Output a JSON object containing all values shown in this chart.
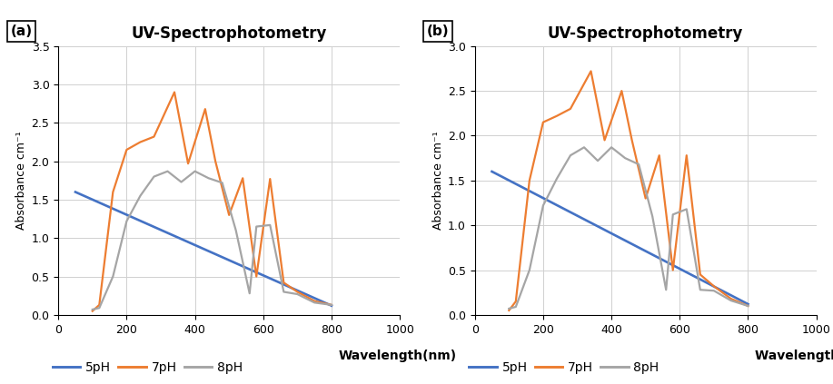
{
  "panel_a": {
    "title": "UV-Spectrophotometry",
    "label": "(a)",
    "ylabel": "Absorbance cm⁻¹",
    "xlabel": "Wavelength(nm)",
    "ylim": [
      0,
      3.5
    ],
    "xlim": [
      0,
      1000
    ],
    "yticks": [
      0,
      0.5,
      1.0,
      1.5,
      2.0,
      2.5,
      3.0,
      3.5
    ],
    "xticks": [
      0,
      200,
      400,
      600,
      800,
      1000
    ],
    "pH5": {
      "x": [
        50,
        800
      ],
      "y": [
        1.6,
        0.12
      ]
    },
    "pH7": {
      "x": [
        100,
        120,
        160,
        200,
        240,
        280,
        340,
        380,
        430,
        460,
        500,
        540,
        580,
        620,
        660,
        700,
        750,
        800
      ],
      "y": [
        0.05,
        0.13,
        1.6,
        2.15,
        2.25,
        2.32,
        2.9,
        1.97,
        2.68,
        2.0,
        1.3,
        1.78,
        0.5,
        1.77,
        0.42,
        0.3,
        0.18,
        0.13
      ]
    },
    "pH8": {
      "x": [
        100,
        120,
        160,
        200,
        240,
        280,
        320,
        360,
        400,
        440,
        480,
        520,
        560,
        580,
        620,
        660,
        700,
        750,
        800
      ],
      "y": [
        0.07,
        0.09,
        0.5,
        1.22,
        1.55,
        1.8,
        1.87,
        1.73,
        1.87,
        1.78,
        1.72,
        1.1,
        0.28,
        1.15,
        1.17,
        0.3,
        0.27,
        0.16,
        0.13
      ]
    }
  },
  "panel_b": {
    "title": "UV-Spectrophotometry",
    "label": "(b)",
    "ylabel": "Absorbance cm⁻¹",
    "xlabel": "Wavelength (nm)",
    "ylim": [
      0,
      3.0
    ],
    "xlim": [
      0,
      1000
    ],
    "yticks": [
      0,
      0.5,
      1.0,
      1.5,
      2.0,
      2.5,
      3.0
    ],
    "xticks": [
      0,
      200,
      400,
      600,
      800,
      1000
    ],
    "pH5": {
      "x": [
        50,
        800
      ],
      "y": [
        1.6,
        0.12
      ]
    },
    "pH7": {
      "x": [
        100,
        120,
        160,
        200,
        240,
        280,
        340,
        380,
        430,
        460,
        500,
        540,
        580,
        620,
        660,
        700,
        750,
        800
      ],
      "y": [
        0.05,
        0.15,
        1.5,
        2.15,
        2.22,
        2.3,
        2.72,
        1.95,
        2.5,
        1.95,
        1.3,
        1.78,
        0.5,
        1.78,
        0.45,
        0.32,
        0.18,
        0.1
      ]
    },
    "pH8": {
      "x": [
        100,
        120,
        160,
        200,
        240,
        280,
        320,
        360,
        400,
        440,
        480,
        520,
        560,
        580,
        620,
        660,
        700,
        750,
        800
      ],
      "y": [
        0.07,
        0.09,
        0.5,
        1.22,
        1.52,
        1.78,
        1.87,
        1.72,
        1.87,
        1.75,
        1.68,
        1.1,
        0.28,
        1.12,
        1.18,
        0.28,
        0.27,
        0.16,
        0.1
      ]
    }
  },
  "color_pH5": "#4472C4",
  "color_pH7": "#ED7D31",
  "color_pH8": "#A5A5A5",
  "linewidth": 1.6
}
